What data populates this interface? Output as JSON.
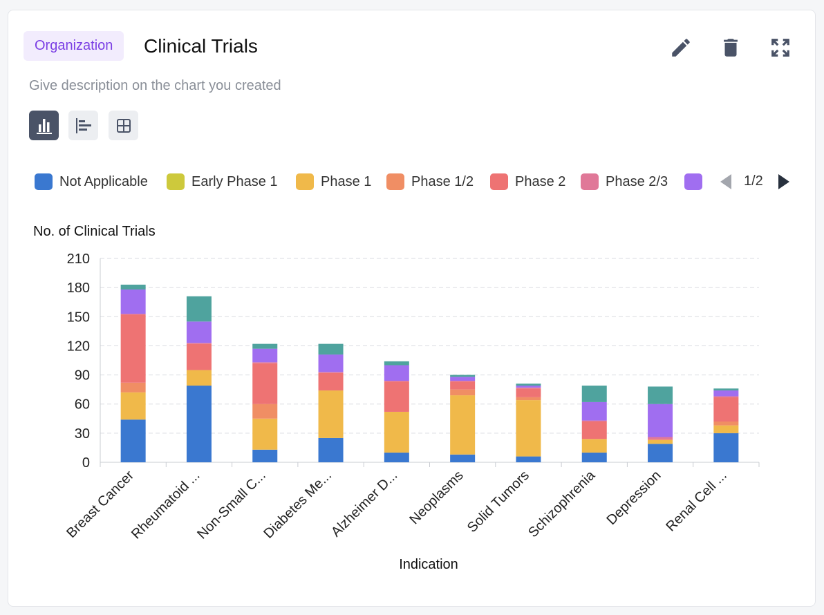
{
  "header": {
    "badge": "Organization",
    "title": "Clinical Trials",
    "description": "Give description on the chart you created"
  },
  "legend_pager": {
    "text": "1/2"
  },
  "colors": {
    "accent": "#7b3fe4",
    "icon": "#4a5367"
  },
  "icons": [
    "pencil-icon",
    "trash-icon",
    "expand-icon",
    "bar-chart-icon",
    "horizontal-bar-chart-icon",
    "table-icon"
  ],
  "chart_data": {
    "type": "bar",
    "stacked": true,
    "title": "",
    "ylabel": "No. of Clinical Trials",
    "xlabel": "Indication",
    "ylim": [
      0,
      210
    ],
    "yticks": [
      0,
      30,
      60,
      90,
      120,
      150,
      180,
      210
    ],
    "grid": true,
    "legend_position": "top",
    "categories": [
      "Breast Cancer",
      "Rheumatoid ...",
      "Non-Small C...",
      "Diabetes Me...",
      "Alzheimer D...",
      "Neoplasms",
      "Solid Tumors",
      "Schizophrenia",
      "Depression",
      "Renal Cell ..."
    ],
    "series": [
      {
        "name": "Not Applicable",
        "color": "#3a78d0",
        "values": [
          44,
          79,
          13,
          25,
          10,
          8,
          6,
          10,
          19,
          30
        ]
      },
      {
        "name": "Early Phase 1",
        "color": "#cdc93c",
        "values": [
          0,
          0,
          0,
          0,
          0,
          0,
          0,
          0,
          0,
          0
        ]
      },
      {
        "name": "Phase 1",
        "color": "#f0b94a",
        "values": [
          28,
          16,
          32,
          49,
          42,
          61,
          58,
          14,
          4,
          8
        ]
      },
      {
        "name": "Phase 1/2",
        "color": "#f08e64",
        "values": [
          10,
          0,
          15,
          0,
          0,
          6,
          3,
          0,
          0,
          4
        ]
      },
      {
        "name": "Phase 2",
        "color": "#ee7373",
        "values": [
          70,
          27,
          42,
          18,
          31,
          8,
          9,
          18,
          1,
          25
        ]
      },
      {
        "name": "Phase 2/3",
        "color": "#e07898",
        "values": [
          1,
          1,
          1,
          1,
          1,
          1,
          1,
          1,
          2,
          1
        ]
      },
      {
        "name": "",
        "color": "#a06ef0",
        "values": [
          25,
          22,
          14,
          18,
          16,
          4,
          2,
          19,
          34,
          6
        ]
      },
      {
        "name": "",
        "color": "#4fa39e",
        "values": [
          5,
          26,
          5,
          11,
          4,
          2,
          2,
          17,
          18,
          2
        ]
      }
    ]
  }
}
